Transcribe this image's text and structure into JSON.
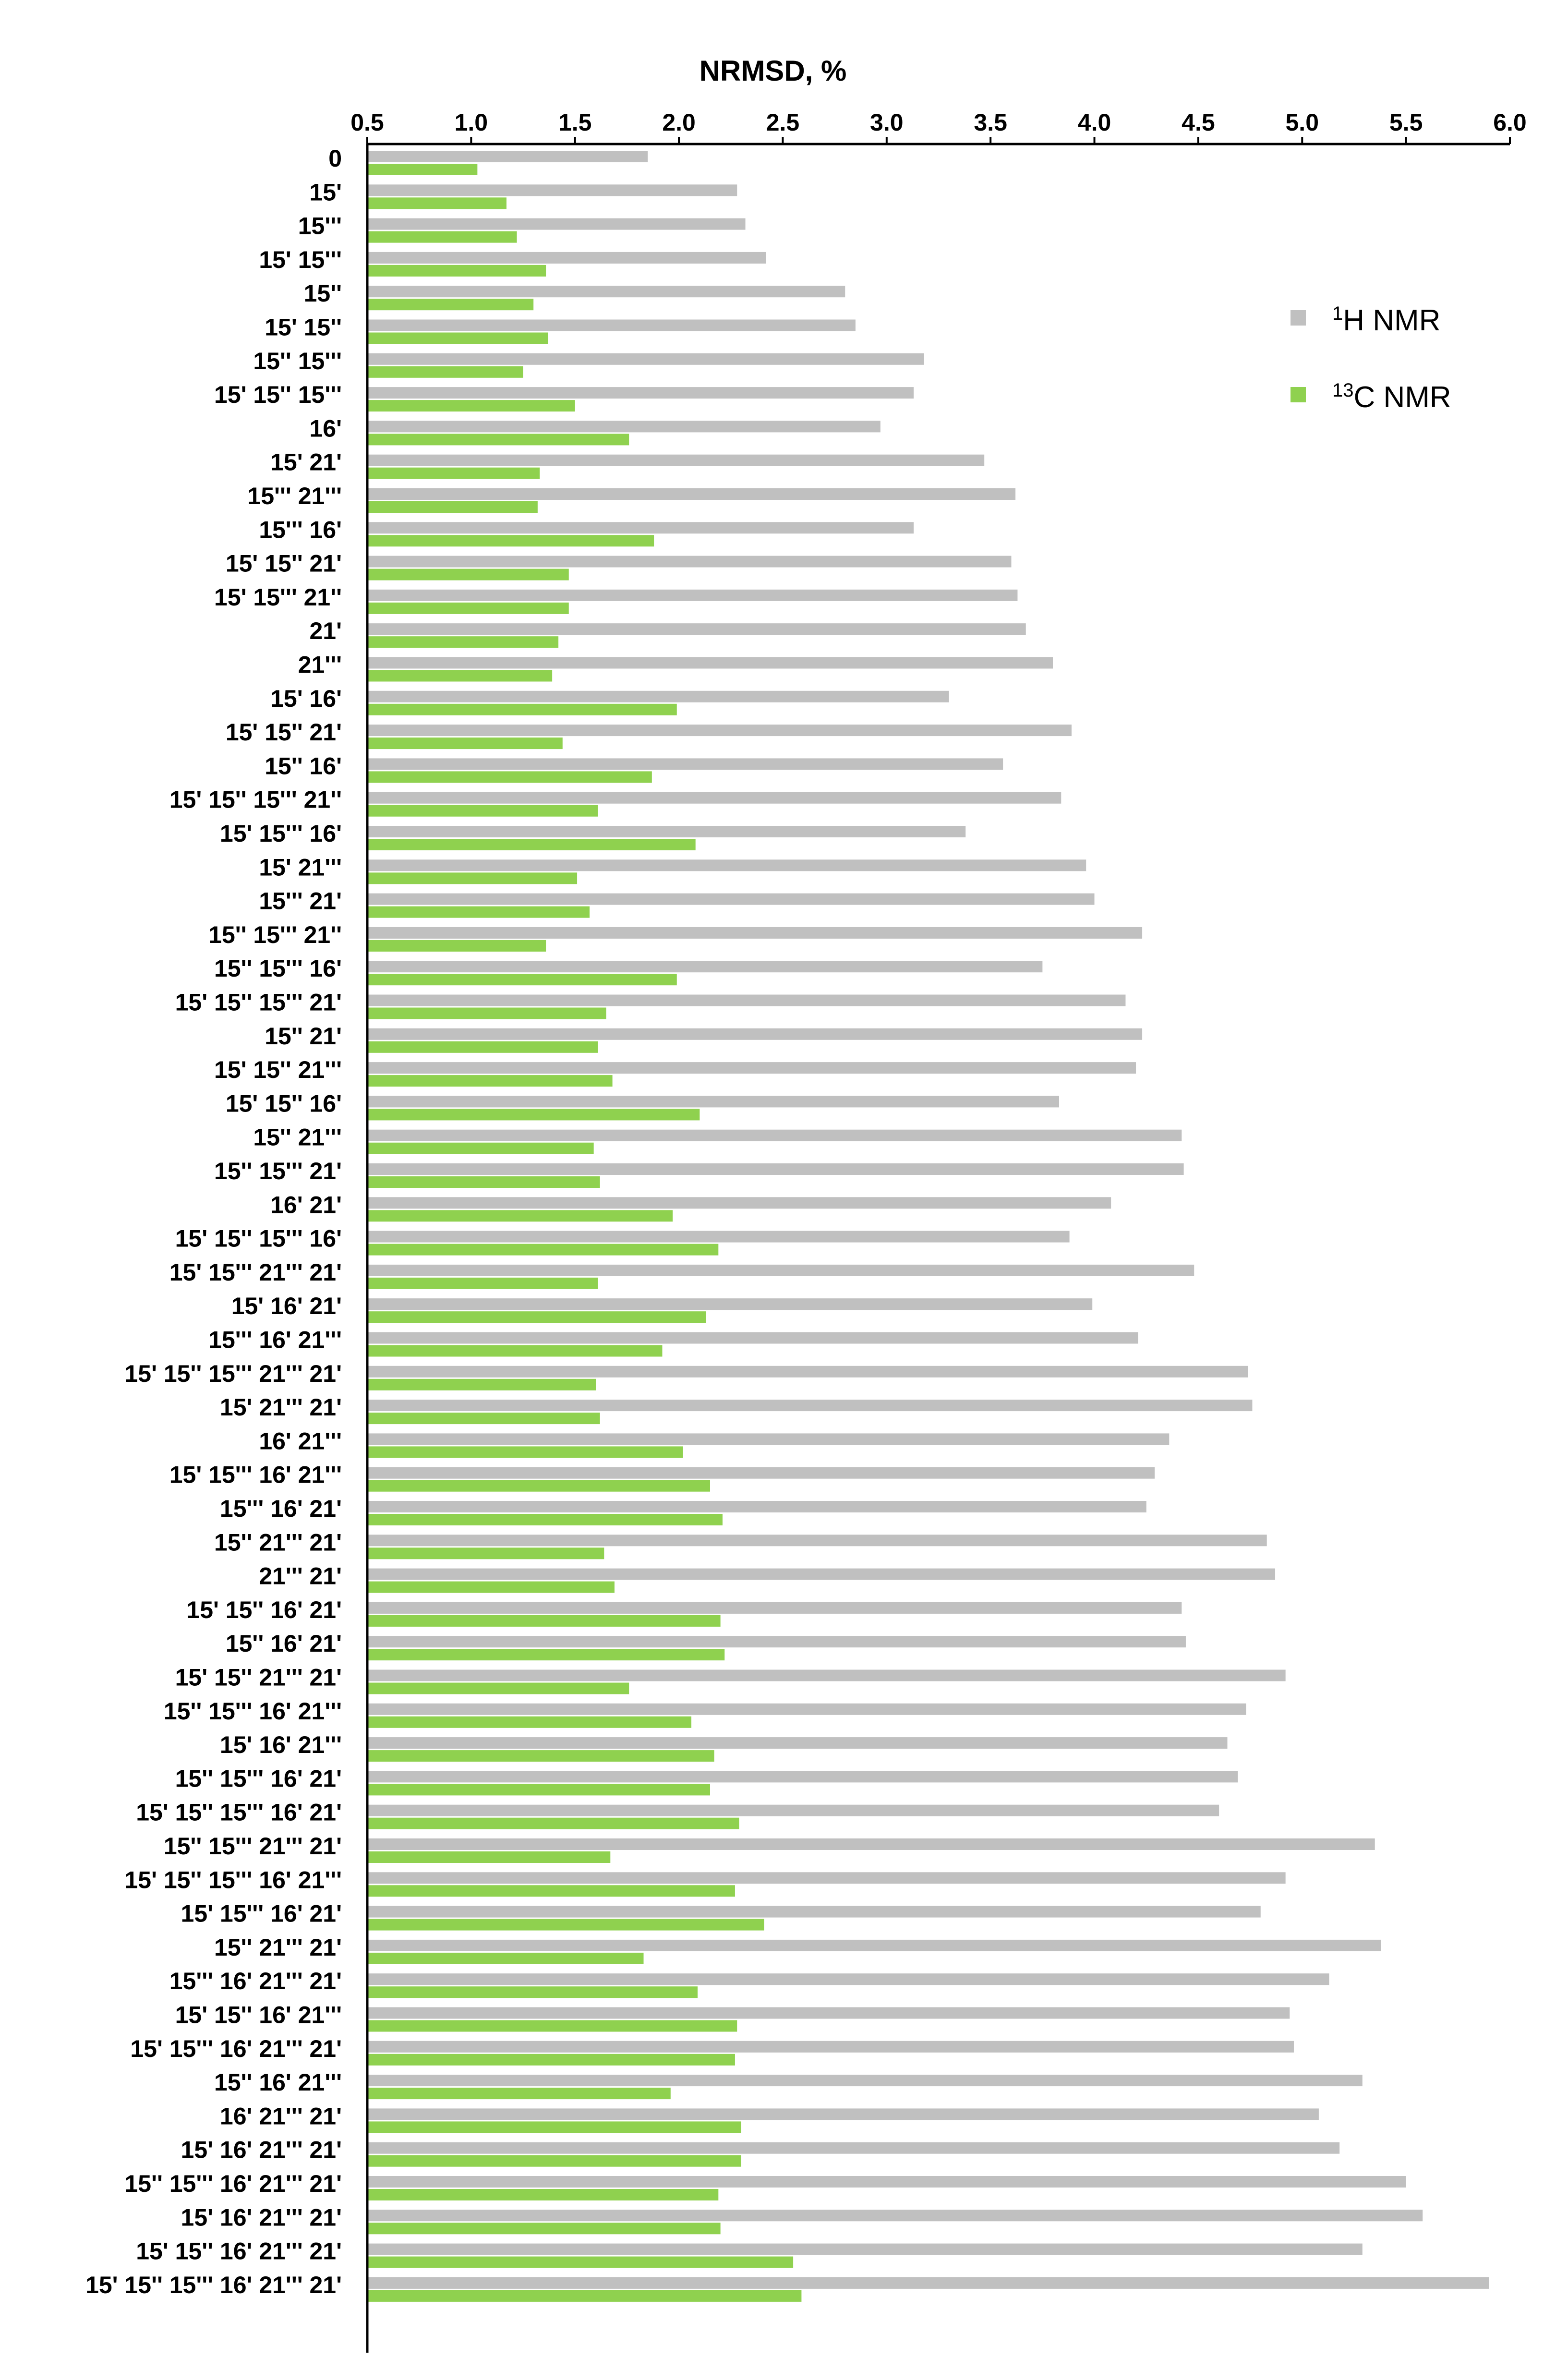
{
  "chart_data": {
    "type": "bar",
    "orientation": "horizontal",
    "xlabel": "NRMSD, %",
    "xlim": [
      0.5,
      6.0
    ],
    "xticks": [
      "0.5",
      "1.0",
      "1.5",
      "2.0",
      "2.5",
      "3.0",
      "3.5",
      "4.0",
      "4.5",
      "5.0",
      "5.5",
      "6.0"
    ],
    "grid": false,
    "legend_position": "top-right",
    "categories": [
      "0",
      "15'",
      "15'''",
      "15' 15'''",
      "15''",
      "15' 15''",
      "15'' 15'''",
      "15' 15'' 15'''",
      "16'",
      "15' 21'",
      "15''' 21'''",
      "15''' 16'",
      "15' 15'' 21'",
      "15' 15''' 21''",
      "21'",
      "21'''",
      "15' 16'",
      "15' 15'' 21'",
      "15'' 16'",
      "15' 15'' 15''' 21''",
      "15' 15''' 16'",
      "15' 21'''",
      "15''' 21'",
      "15'' 15''' 21''",
      "15'' 15''' 16'",
      "15' 15'' 15''' 21'",
      "15'' 21'",
      "15' 15'' 21'''",
      "15' 15'' 16'",
      "15'' 21'''",
      "15'' 15''' 21'",
      "16' 21'",
      "15' 15'' 15''' 16'",
      "15' 15''' 21''' 21'",
      "15' 16' 21'",
      "15''' 16' 21'''",
      "15' 15'' 15''' 21''' 21'",
      "15' 21''' 21'",
      "16' 21'''",
      "15' 15''' 16' 21'''",
      "15''' 16' 21'",
      "15'' 21''' 21'",
      "21''' 21'",
      "15' 15'' 16' 21'",
      "15'' 16' 21'",
      "15' 15'' 21''' 21'",
      "15'' 15''' 16' 21'''",
      "15' 16' 21'''",
      "15'' 15''' 16' 21'",
      "15' 15'' 15''' 16' 21'",
      "15'' 15''' 21''' 21'",
      "15' 15'' 15''' 16' 21'''",
      "15' 15''' 16' 21'",
      "15'' 21''' 21'",
      "15''' 16' 21''' 21'",
      "15' 15'' 16' 21'''",
      "15' 15''' 16' 21''' 21'",
      "15'' 16' 21'''",
      "16' 21''' 21'",
      "15' 16' 21''' 21'",
      "15'' 15''' 16' 21''' 21'",
      "15' 16' 21''' 21'",
      "15' 15'' 16' 21''' 21'",
      "15' 15'' 15''' 16' 21''' 21'"
    ],
    "series": [
      {
        "name_sup": "1",
        "name_text": "H NMR",
        "color": "#c0c0c0",
        "values": [
          1.85,
          2.28,
          2.32,
          2.42,
          2.8,
          2.85,
          3.18,
          3.13,
          2.97,
          3.47,
          3.62,
          3.13,
          3.6,
          3.63,
          3.67,
          3.8,
          3.3,
          3.89,
          3.56,
          3.84,
          3.38,
          3.96,
          4.0,
          4.23,
          3.75,
          4.15,
          4.23,
          4.2,
          3.83,
          4.42,
          4.43,
          4.08,
          3.88,
          4.48,
          3.99,
          4.21,
          4.74,
          4.76,
          4.36,
          4.29,
          4.25,
          4.83,
          4.87,
          4.42,
          4.44,
          4.92,
          4.73,
          4.64,
          4.69,
          4.6,
          5.35,
          4.92,
          4.8,
          5.38,
          5.13,
          4.94,
          4.96,
          5.29,
          5.08,
          5.18,
          5.5,
          5.58,
          5.29,
          5.9
        ]
      },
      {
        "name_sup": "13",
        "name_text": "C NMR",
        "color": "#8fd14f",
        "values": [
          1.03,
          1.17,
          1.22,
          1.36,
          1.3,
          1.37,
          1.25,
          1.5,
          1.76,
          1.33,
          1.32,
          1.88,
          1.47,
          1.47,
          1.42,
          1.39,
          1.99,
          1.44,
          1.87,
          1.61,
          2.08,
          1.51,
          1.57,
          1.36,
          1.99,
          1.65,
          1.61,
          1.68,
          2.1,
          1.59,
          1.62,
          1.97,
          2.19,
          1.61,
          2.13,
          1.92,
          1.6,
          1.62,
          2.02,
          2.15,
          2.21,
          1.64,
          1.69,
          2.2,
          2.22,
          1.76,
          2.06,
          2.17,
          2.15,
          2.29,
          1.67,
          2.27,
          2.41,
          1.83,
          2.09,
          2.28,
          2.27,
          1.96,
          2.3,
          2.3,
          2.19,
          2.2,
          2.55,
          2.59
        ]
      }
    ]
  }
}
